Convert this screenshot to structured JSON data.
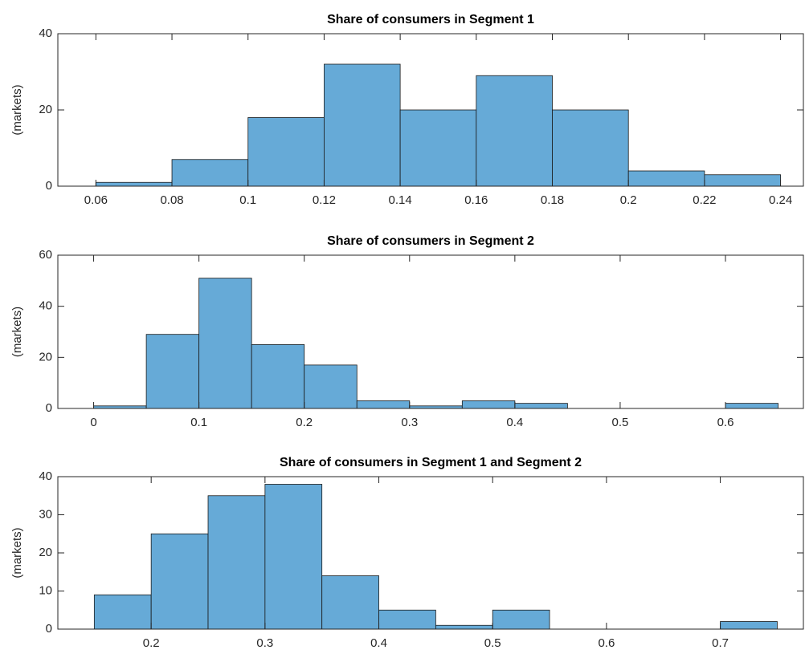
{
  "chart_data": [
    {
      "type": "histogram",
      "title": "Share of consumers in Segment 1",
      "ylabel": "(markets)",
      "color": "#66aad7",
      "bins": [
        0.06,
        0.08,
        0.1,
        0.12,
        0.14,
        0.16,
        0.18,
        0.2,
        0.22,
        0.24
      ],
      "values": [
        1,
        7,
        18,
        32,
        20,
        29,
        20,
        4,
        3
      ],
      "xlim": [
        0.05,
        0.246
      ],
      "xticks": [
        0.06,
        0.08,
        0.1,
        0.12,
        0.14,
        0.16,
        0.18,
        0.2,
        0.22,
        0.24
      ],
      "ylim": [
        0,
        40
      ],
      "yticks": [
        0,
        20,
        40
      ]
    },
    {
      "type": "histogram",
      "title": "Share of consumers in Segment 2",
      "ylabel": "(markets)",
      "color": "#66aad7",
      "bins": [
        0,
        0.05,
        0.1,
        0.15,
        0.2,
        0.25,
        0.3,
        0.35,
        0.4,
        0.45,
        0.5,
        0.55,
        0.6,
        0.65
      ],
      "values": [
        1,
        29,
        51,
        25,
        17,
        3,
        1,
        3,
        2,
        0,
        0,
        0,
        2
      ],
      "xlim": [
        -0.034,
        0.674
      ],
      "xticks": [
        0,
        0.1,
        0.2,
        0.3,
        0.4,
        0.5,
        0.6
      ],
      "ylim": [
        0,
        60
      ],
      "yticks": [
        0,
        20,
        40,
        60
      ]
    },
    {
      "type": "histogram",
      "title": "Share of consumers in Segment 1 and Segment 2",
      "ylabel": "(markets)",
      "color": "#66aad7",
      "bins": [
        0.15,
        0.2,
        0.25,
        0.3,
        0.35,
        0.4,
        0.45,
        0.5,
        0.55,
        0.6,
        0.65,
        0.7,
        0.75
      ],
      "values": [
        9,
        25,
        35,
        38,
        14,
        5,
        1,
        5,
        0,
        0,
        0,
        2
      ],
      "xlim": [
        0.118,
        0.773
      ],
      "xticks": [
        0.2,
        0.3,
        0.4,
        0.5,
        0.6,
        0.7
      ],
      "ylim": [
        0,
        40
      ],
      "yticks": [
        0,
        10,
        20,
        30,
        40
      ]
    }
  ]
}
